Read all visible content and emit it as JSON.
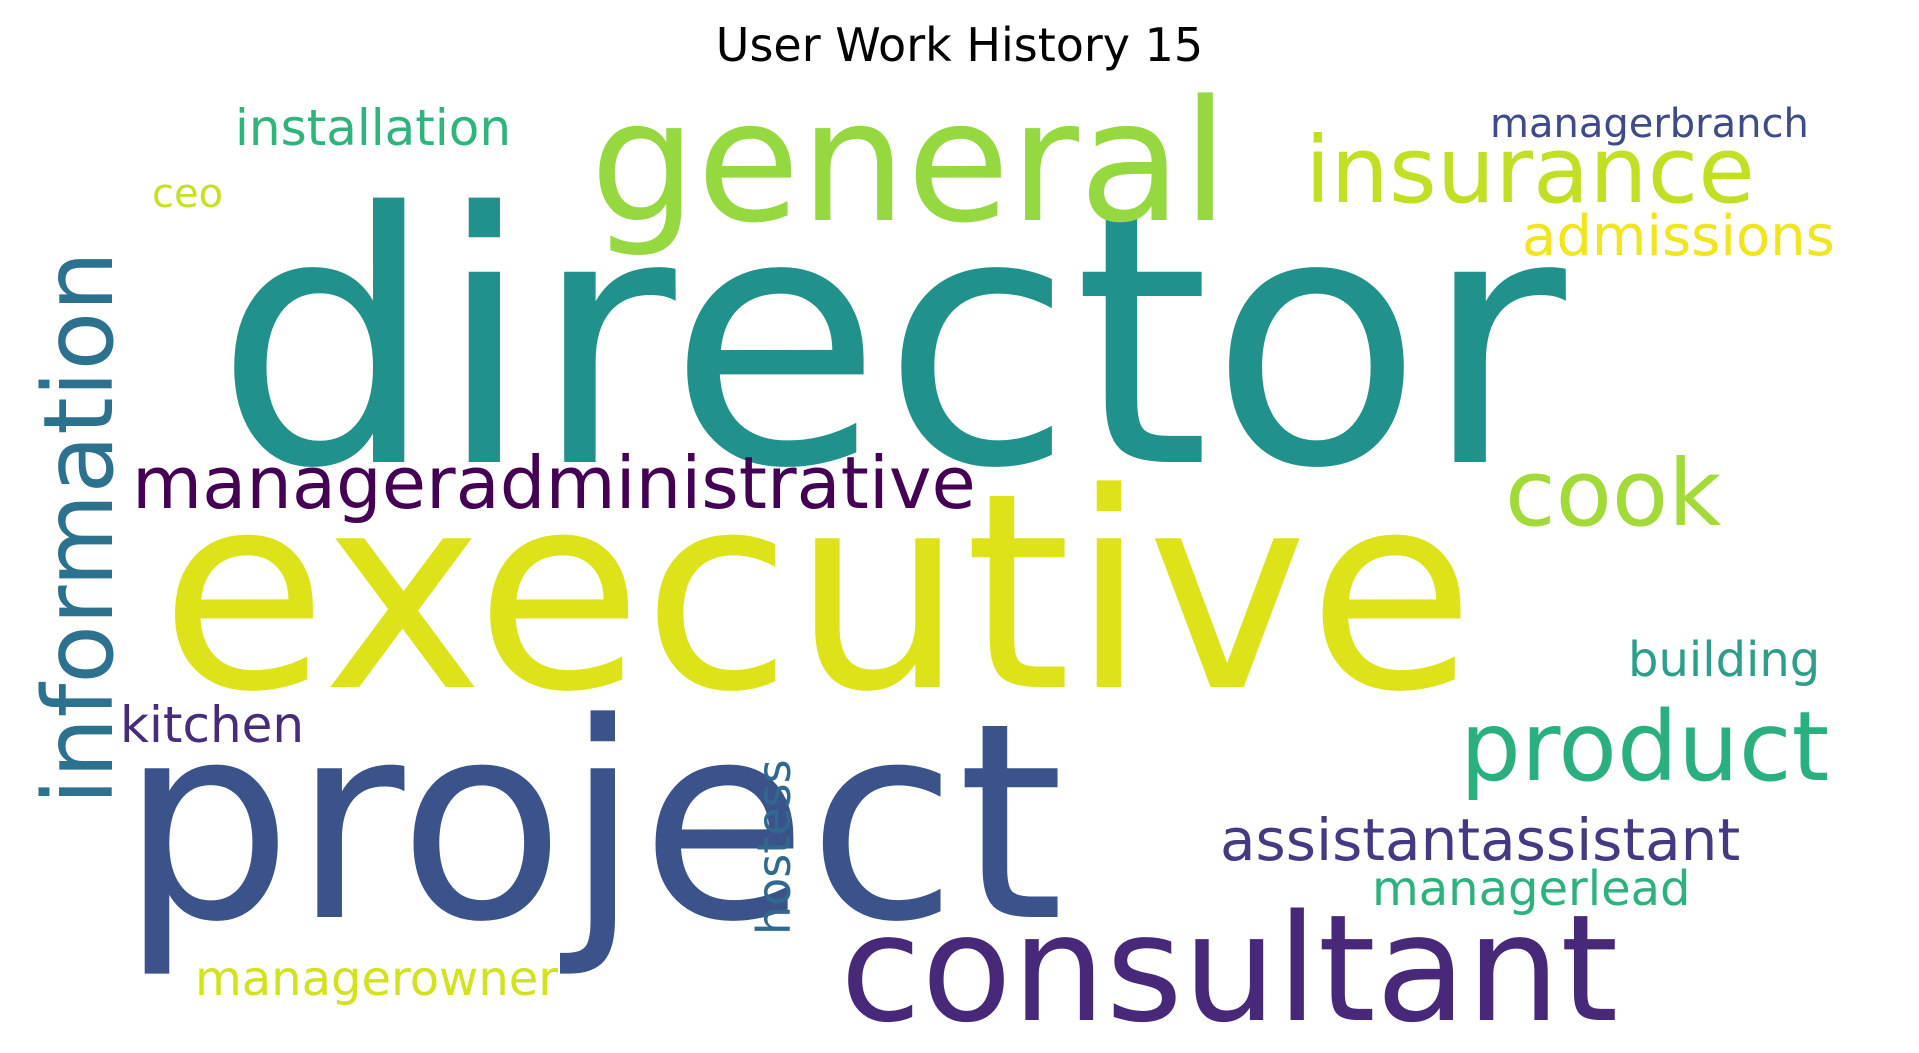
{
  "title": "User Work History 15",
  "words": [
    {
      "text": "director",
      "color": "#21918c",
      "rotated": false
    },
    {
      "text": "executive",
      "color": "#dde318",
      "rotated": false
    },
    {
      "text": "project",
      "color": "#3b528b",
      "rotated": false
    },
    {
      "text": "general",
      "color": "#95d840",
      "rotated": false
    },
    {
      "text": "consultant",
      "color": "#482878",
      "rotated": false
    },
    {
      "text": "information",
      "color": "#2c728e",
      "rotated": true
    },
    {
      "text": "insurance",
      "color": "#c2df23",
      "rotated": false
    },
    {
      "text": "manageradministrative",
      "color": "#440154",
      "rotated": false
    },
    {
      "text": "product",
      "color": "#2ab07f",
      "rotated": false
    },
    {
      "text": "cook",
      "color": "#a2da37",
      "rotated": false
    },
    {
      "text": "assistantassistant",
      "color": "#443983",
      "rotated": false
    },
    {
      "text": "admissions",
      "color": "#f1e51d",
      "rotated": false
    },
    {
      "text": "installation",
      "color": "#2fb47c",
      "rotated": false
    },
    {
      "text": "kitchen",
      "color": "#472c7a",
      "rotated": false
    },
    {
      "text": "building",
      "color": "#2c9f8a",
      "rotated": false
    },
    {
      "text": "managerlead",
      "color": "#2db27d",
      "rotated": false
    },
    {
      "text": "hostess",
      "color": "#31688e",
      "rotated": true
    },
    {
      "text": "managerowner",
      "color": "#d2e21b",
      "rotated": false
    },
    {
      "text": "managerbranch",
      "color": "#3e4a89",
      "rotated": false
    },
    {
      "text": "ceo",
      "color": "#c8e020",
      "rotated": false
    }
  ]
}
